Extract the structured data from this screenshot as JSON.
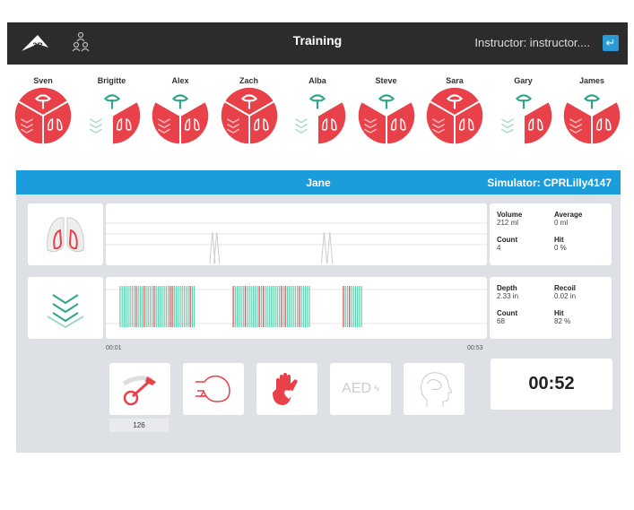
{
  "header": {
    "title": "Training",
    "instructor": "Instructor: instructor....",
    "logo_text": "3B"
  },
  "participants": [
    {
      "name": "Sven",
      "airway": "red",
      "compress": "red",
      "vent": "red"
    },
    {
      "name": "Brigitte",
      "airway": "green",
      "compress": "green",
      "vent": "red"
    },
    {
      "name": "Alex",
      "airway": "green",
      "compress": "red",
      "vent": "red"
    },
    {
      "name": "Zach",
      "airway": "red",
      "compress": "red",
      "vent": "red"
    },
    {
      "name": "Alba",
      "airway": "green",
      "compress": "green",
      "vent": "red"
    },
    {
      "name": "Steve",
      "airway": "green",
      "compress": "red",
      "vent": "red"
    },
    {
      "name": "Sara",
      "airway": "red",
      "compress": "red",
      "vent": "red"
    },
    {
      "name": "Gary",
      "airway": "green",
      "compress": "green",
      "vent": "red"
    },
    {
      "name": "James",
      "airway": "green",
      "compress": "red",
      "vent": "red"
    }
  ],
  "session": {
    "student": "Jane",
    "simulator": "Simulator: CPRLilly4147"
  },
  "ventilation": {
    "volume_label": "Volume",
    "volume": "212  ml",
    "average_label": "Average",
    "average": "0  ml",
    "count_label": "Count",
    "count": "4",
    "hit_label": "Hit",
    "hit": "0  %",
    "peaks": [
      15.4,
      16.0,
      31.0,
      31.8
    ]
  },
  "compression": {
    "depth_label": "Depth",
    "depth": "2.33  in",
    "recoil_label": "Recoil",
    "recoil": "0.02  in",
    "count_label": "Count",
    "count": "68",
    "hit_label": "Hit",
    "hit": "82  %",
    "bursts": [
      [
        2.5,
        13
      ],
      [
        18.3,
        29
      ],
      [
        33.7,
        36.4
      ]
    ]
  },
  "timeline": {
    "start": "00:01",
    "end": "00:53",
    "start_s": 1,
    "end_s": 53
  },
  "buttons": {
    "rate": "126",
    "aed": "AED",
    "timer": "00:52"
  },
  "colors": {
    "red": "#e8414a",
    "green": "#2fa58a",
    "blue": "#1b9ddb"
  }
}
